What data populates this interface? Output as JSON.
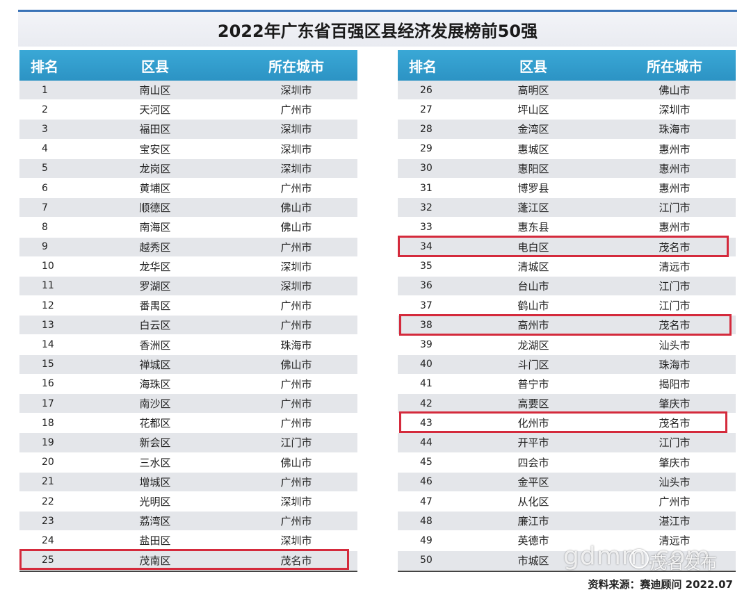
{
  "title": "2022年广东省百强区县经济发展榜前50强",
  "headers": {
    "rank": "排名",
    "district": "区县",
    "city": "所在城市"
  },
  "left_rows": [
    {
      "rank": "1",
      "district": "南山区",
      "city": "深圳市"
    },
    {
      "rank": "2",
      "district": "天河区",
      "city": "广州市"
    },
    {
      "rank": "3",
      "district": "福田区",
      "city": "深圳市"
    },
    {
      "rank": "4",
      "district": "宝安区",
      "city": "深圳市"
    },
    {
      "rank": "5",
      "district": "龙岗区",
      "city": "深圳市"
    },
    {
      "rank": "6",
      "district": "黄埔区",
      "city": "广州市"
    },
    {
      "rank": "7",
      "district": "顺德区",
      "city": "佛山市"
    },
    {
      "rank": "8",
      "district": "南海区",
      "city": "佛山市"
    },
    {
      "rank": "9",
      "district": "越秀区",
      "city": "广州市"
    },
    {
      "rank": "10",
      "district": "龙华区",
      "city": "深圳市"
    },
    {
      "rank": "11",
      "district": "罗湖区",
      "city": "深圳市"
    },
    {
      "rank": "12",
      "district": "番禺区",
      "city": "广州市"
    },
    {
      "rank": "13",
      "district": "白云区",
      "city": "广州市"
    },
    {
      "rank": "14",
      "district": "香洲区",
      "city": "珠海市"
    },
    {
      "rank": "15",
      "district": "禅城区",
      "city": "佛山市"
    },
    {
      "rank": "16",
      "district": "海珠区",
      "city": "广州市"
    },
    {
      "rank": "17",
      "district": "南沙区",
      "city": "广州市"
    },
    {
      "rank": "18",
      "district": "花都区",
      "city": "广州市"
    },
    {
      "rank": "19",
      "district": "新会区",
      "city": "江门市"
    },
    {
      "rank": "20",
      "district": "三水区",
      "city": "佛山市"
    },
    {
      "rank": "21",
      "district": "增城区",
      "city": "广州市"
    },
    {
      "rank": "22",
      "district": "光明区",
      "city": "深圳市"
    },
    {
      "rank": "23",
      "district": "荔湾区",
      "city": "广州市"
    },
    {
      "rank": "24",
      "district": "盐田区",
      "city": "深圳市"
    },
    {
      "rank": "25",
      "district": "茂南区",
      "city": "茂名市"
    }
  ],
  "right_rows": [
    {
      "rank": "26",
      "district": "高明区",
      "city": "佛山市"
    },
    {
      "rank": "27",
      "district": "坪山区",
      "city": "深圳市"
    },
    {
      "rank": "28",
      "district": "金湾区",
      "city": "珠海市"
    },
    {
      "rank": "29",
      "district": "惠城区",
      "city": "惠州市"
    },
    {
      "rank": "30",
      "district": "惠阳区",
      "city": "惠州市"
    },
    {
      "rank": "31",
      "district": "博罗县",
      "city": "惠州市"
    },
    {
      "rank": "32",
      "district": "蓬江区",
      "city": "江门市"
    },
    {
      "rank": "33",
      "district": "惠东县",
      "city": "惠州市"
    },
    {
      "rank": "34",
      "district": "电白区",
      "city": "茂名市"
    },
    {
      "rank": "35",
      "district": "清城区",
      "city": "清远市"
    },
    {
      "rank": "36",
      "district": "台山市",
      "city": "江门市"
    },
    {
      "rank": "37",
      "district": "鹤山市",
      "city": "江门市"
    },
    {
      "rank": "38",
      "district": "高州市",
      "city": "茂名市"
    },
    {
      "rank": "39",
      "district": "龙湖区",
      "city": "汕头市"
    },
    {
      "rank": "40",
      "district": "斗门区",
      "city": "珠海市"
    },
    {
      "rank": "41",
      "district": "普宁市",
      "city": "揭阳市"
    },
    {
      "rank": "42",
      "district": "高要区",
      "city": "肇庆市"
    },
    {
      "rank": "43",
      "district": "化州市",
      "city": "茂名市"
    },
    {
      "rank": "44",
      "district": "开平市",
      "city": "江门市"
    },
    {
      "rank": "45",
      "district": "四会市",
      "city": "肇庆市"
    },
    {
      "rank": "46",
      "district": "金平区",
      "city": "汕头市"
    },
    {
      "rank": "47",
      "district": "从化区",
      "city": "广州市"
    },
    {
      "rank": "48",
      "district": "廉江市",
      "city": "湛江市"
    },
    {
      "rank": "49",
      "district": "英德市",
      "city": "清远市"
    },
    {
      "rank": "50",
      "district": "市城区",
      "city": ""
    }
  ],
  "highlight_color": "#d42a3c",
  "header_color": "#2c93c4",
  "source": "资料来源：赛迪顾问  2022.07",
  "watermark": {
    "site": "gdmm.com",
    "account": "茂名发布"
  }
}
